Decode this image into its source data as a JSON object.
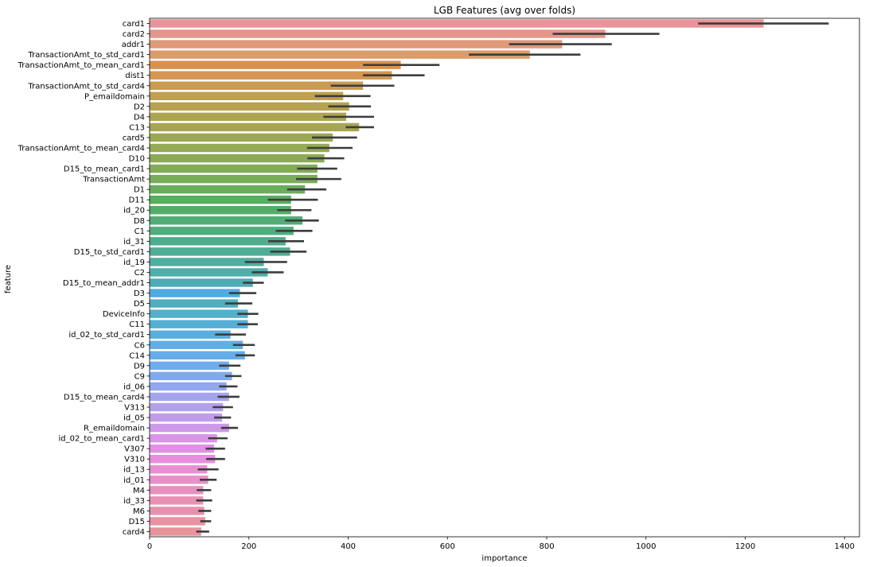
{
  "chart_data": {
    "type": "bar",
    "orientation": "horizontal",
    "title": "LGB Features (avg over folds)",
    "xlabel": "importance",
    "ylabel": "feature",
    "xlim": [
      0,
      1430
    ],
    "xticks": [
      "0",
      "200",
      "400",
      "600",
      "800",
      "1000",
      "1200",
      "1400"
    ],
    "grid": false,
    "legend": "none",
    "error_bars": true,
    "categories": [
      "card1",
      "card2",
      "addr1",
      "TransactionAmt_to_std_card1",
      "TransactionAmt_to_mean_card1",
      "dist1",
      "TransactionAmt_to_std_card4",
      "P_emaildomain",
      "D2",
      "D4",
      "C13",
      "card5",
      "TransactionAmt_to_mean_card4",
      "D10",
      "D15_to_mean_card1",
      "TransactionAmt",
      "D1",
      "D11",
      "id_20",
      "D8",
      "C1",
      "id_31",
      "D15_to_std_card1",
      "id_19",
      "C2",
      "D15_to_mean_addr1",
      "D3",
      "D5",
      "DeviceInfo",
      "C11",
      "id_02_to_std_card1",
      "C6",
      "C14",
      "D9",
      "C9",
      "id_06",
      "D15_to_mean_card4",
      "V313",
      "id_05",
      "R_emaildomain",
      "id_02_to_mean_card1",
      "V307",
      "V310",
      "id_13",
      "id_01",
      "M4",
      "id_33",
      "M6",
      "D15",
      "card4"
    ],
    "values": [
      1237,
      918,
      831,
      766,
      506,
      488,
      430,
      390,
      402,
      396,
      422,
      369,
      362,
      352,
      338,
      338,
      313,
      285,
      285,
      308,
      290,
      274,
      283,
      230,
      238,
      208,
      182,
      178,
      198,
      198,
      163,
      188,
      192,
      160,
      166,
      155,
      160,
      148,
      146,
      160,
      136,
      130,
      132,
      116,
      118,
      108,
      108,
      110,
      112,
      104
    ],
    "errors": [
      [
        1105,
        1368
      ],
      [
        812,
        1027
      ],
      [
        724,
        931
      ],
      [
        643,
        868
      ],
      [
        430,
        584
      ],
      [
        430,
        554
      ],
      [
        365,
        493
      ],
      [
        333,
        445
      ],
      [
        360,
        446
      ],
      [
        350,
        452
      ],
      [
        395,
        452
      ],
      [
        327,
        418
      ],
      [
        317,
        409
      ],
      [
        318,
        392
      ],
      [
        297,
        378
      ],
      [
        295,
        386
      ],
      [
        277,
        356
      ],
      [
        238,
        339
      ],
      [
        257,
        326
      ],
      [
        273,
        341
      ],
      [
        254,
        328
      ],
      [
        239,
        311
      ],
      [
        243,
        316
      ],
      [
        192,
        277
      ],
      [
        206,
        270
      ],
      [
        188,
        230
      ],
      [
        160,
        215
      ],
      [
        152,
        207
      ],
      [
        177,
        219
      ],
      [
        177,
        218
      ],
      [
        132,
        194
      ],
      [
        168,
        212
      ],
      [
        173,
        212
      ],
      [
        140,
        183
      ],
      [
        152,
        185
      ],
      [
        140,
        177
      ],
      [
        137,
        181
      ],
      [
        127,
        168
      ],
      [
        130,
        164
      ],
      [
        144,
        178
      ],
      [
        118,
        157
      ],
      [
        113,
        152
      ],
      [
        114,
        152
      ],
      [
        97,
        139
      ],
      [
        101,
        135
      ],
      [
        95,
        124
      ],
      [
        94,
        126
      ],
      [
        98,
        124
      ],
      [
        102,
        124
      ],
      [
        94,
        120
      ]
    ],
    "colors": [
      "#e8949a",
      "#e39689",
      "#df9a7a",
      "#db9c6c",
      "#d8924f",
      "#d49650",
      "#c99a50",
      "#bea050",
      "#b6a250",
      "#aea551",
      "#a5a652",
      "#9da853",
      "#94aa54",
      "#8caa55",
      "#82ac56",
      "#78ad57",
      "#6aae5c",
      "#57ae5e",
      "#52ad68",
      "#50ad75",
      "#50ad80",
      "#4fac8a",
      "#4ead94",
      "#4faea0",
      "#4eaeaa",
      "#4eadb4",
      "#4face2",
      "#50aec0",
      "#55aecb",
      "#55aed6",
      "#58aede",
      "#60aee5",
      "#65adeb",
      "#6eacee",
      "#80aaee",
      "#93a7ee",
      "#a4a4ee",
      "#b3a0ec",
      "#c29cea",
      "#cf99e9",
      "#da95e8",
      "#e191e5",
      "#e68fde",
      "#e88fd4",
      "#e890ca",
      "#e890bf",
      "#e891b5",
      "#e891ac",
      "#e892a3",
      "#e8939b"
    ]
  }
}
